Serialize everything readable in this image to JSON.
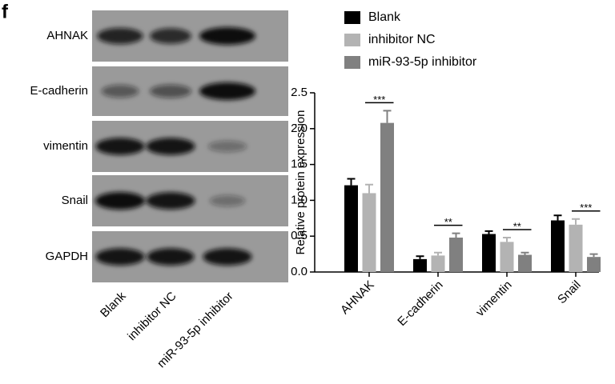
{
  "panel_label": "f",
  "blot": {
    "rows": [
      "AHNAK",
      "E-cadherin",
      "vimentin",
      "Snail",
      "GAPDH"
    ],
    "columns": [
      "Blank",
      "inhibitor NC",
      "miR-93-5p inhibitor"
    ]
  },
  "chart_data": {
    "type": "bar",
    "ylabel": "Relative protein expression",
    "categories": [
      "AHNAK",
      "E-cadherin",
      "vimentin",
      "Snail"
    ],
    "series": [
      {
        "name": "Blank",
        "color": "#000000",
        "values": [
          1.21,
          0.18,
          0.53,
          0.72
        ],
        "errors": [
          0.09,
          0.04,
          0.04,
          0.07
        ]
      },
      {
        "name": "inhibitor NC",
        "color": "#b3b3b3",
        "values": [
          1.1,
          0.23,
          0.42,
          0.66
        ],
        "errors": [
          0.12,
          0.04,
          0.06,
          0.08
        ]
      },
      {
        "name": "miR-93-5p inhibitor",
        "color": "#808080",
        "values": [
          2.08,
          0.48,
          0.24,
          0.21
        ],
        "errors": [
          0.17,
          0.06,
          0.03,
          0.04
        ]
      }
    ],
    "annotations": [
      "***",
      "**",
      "**",
      "***"
    ],
    "ylim": [
      0,
      2.5
    ],
    "yticks": [
      {
        "value": 0,
        "label": "0.0"
      },
      0.5,
      {
        "value": 1,
        "label": "1.0"
      },
      1.5,
      {
        "value": 2,
        "label": "2.0"
      },
      2.5
    ],
    "legend": "top"
  }
}
